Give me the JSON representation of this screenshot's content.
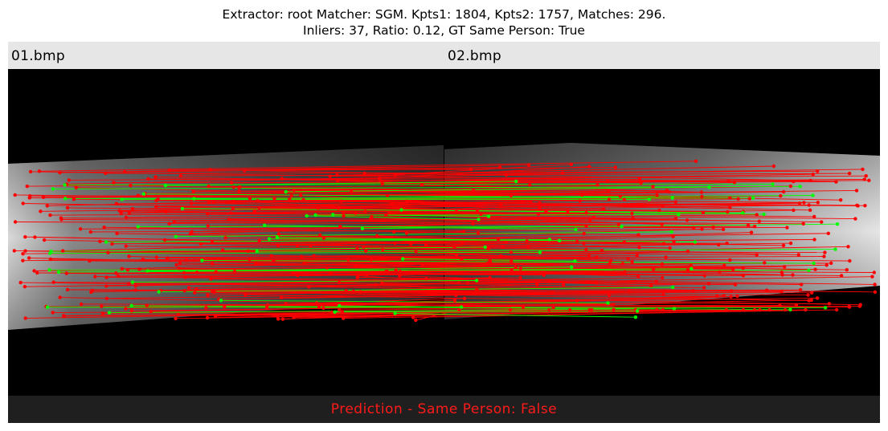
{
  "title": {
    "line1": "Extractor:  root Matcher: SGM. Kpts1: 1804, Kpts2: 1757, Matches: 296.",
    "line2": "Inliers: 37, Ratio: 0.12, GT Same Person: True"
  },
  "images": {
    "left_label": "01.bmp",
    "right_label": "02.bmp"
  },
  "footer": {
    "prediction_text": "Prediction - Same Person: False"
  },
  "colors": {
    "inlier": "#00ff00",
    "outlier": "#ff0000",
    "header_bg": "#e6e6e6",
    "footer_bg": "#1f1f1f",
    "prediction_text": "#ff1a1a"
  },
  "icons": {
    "finger_image_left": "finger-vein-left-image",
    "finger_image_right": "finger-vein-right-image"
  }
}
